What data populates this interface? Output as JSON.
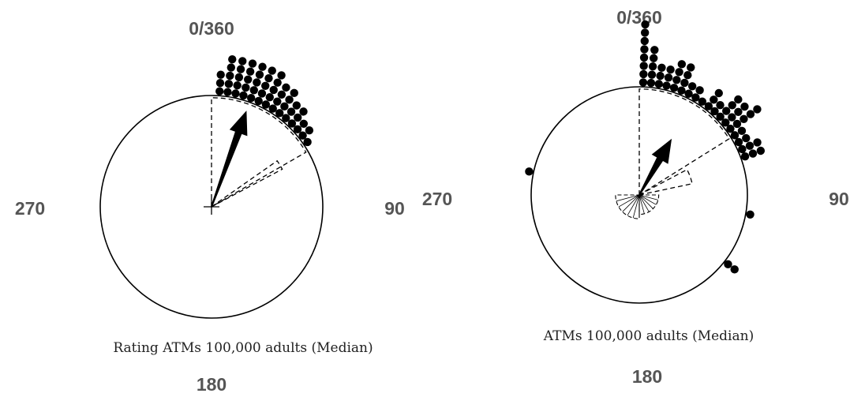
{
  "chart_data": [
    {
      "type": "circular_dot_plot",
      "caption": "Rating ATMs 100,000 adults (Median)",
      "direction_labels": {
        "north": "0/360",
        "east": "90",
        "south": "180",
        "west": "270"
      },
      "units": "degrees",
      "mean_direction": 20,
      "mean_vector_length": 0.92,
      "confidence_bounds": [
        {
          "start": 0,
          "end": 60,
          "radius_fraction": 0.98
        },
        {
          "start": 55,
          "end": 62,
          "radius_fraction": 0.72
        }
      ],
      "rose_petals": [],
      "data_bins": [
        {
          "angle": 4,
          "count": 3
        },
        {
          "angle": 8,
          "count": 5
        },
        {
          "angle": 12,
          "count": 5
        },
        {
          "angle": 16,
          "count": 5
        },
        {
          "angle": 20,
          "count": 5
        },
        {
          "angle": 24,
          "count": 5
        },
        {
          "angle": 28,
          "count": 5
        },
        {
          "angle": 32,
          "count": 4
        },
        {
          "angle": 36,
          "count": 4
        },
        {
          "angle": 40,
          "count": 3
        },
        {
          "angle": 44,
          "count": 3
        },
        {
          "angle": 48,
          "count": 2
        },
        {
          "angle": 52,
          "count": 2
        },
        {
          "angle": 56,
          "count": 1
        }
      ],
      "colors": {
        "dot": "#000000",
        "circle": "#000000",
        "label": "#555555"
      }
    },
    {
      "type": "circular_dot_plot",
      "caption": "ATMs 100,000 adults (Median)",
      "direction_labels": {
        "north": "0/360",
        "east": "90",
        "south": "180",
        "west": "270"
      },
      "units": "degrees",
      "mean_direction": 30,
      "mean_vector_length": 0.6,
      "confidence_bounds": [
        {
          "start": 0,
          "end": 58,
          "radius_fraction": 0.98
        },
        {
          "start": 62,
          "end": 78,
          "radius_fraction": 0.5
        }
      ],
      "rose_petals": [
        {
          "start": 90,
          "end": 180,
          "radius_fraction": 0.18
        },
        {
          "start": 180,
          "end": 270,
          "radius_fraction": 0.22
        }
      ],
      "data_bins": [
        {
          "angle": 2,
          "count": 8
        },
        {
          "angle": 6,
          "count": 5
        },
        {
          "angle": 10,
          "count": 3
        },
        {
          "angle": 14,
          "count": 3
        },
        {
          "angle": 18,
          "count": 4
        },
        {
          "angle": 22,
          "count": 4
        },
        {
          "angle": 26,
          "count": 2
        },
        {
          "angle": 30,
          "count": 2
        },
        {
          "angle": 34,
          "count": 1
        },
        {
          "angle": 38,
          "count": 3
        },
        {
          "angle": 42,
          "count": 2
        },
        {
          "angle": 46,
          "count": 4
        },
        {
          "angle": 50,
          "count": 4
        },
        {
          "angle": 54,
          "count": 5
        },
        {
          "angle": 58,
          "count": 2
        },
        {
          "angle": 62,
          "count": 2
        },
        {
          "angle": 66,
          "count": 3
        },
        {
          "angle": 70,
          "count": 3
        },
        {
          "angle": 100,
          "count": 1
        },
        {
          "angle": 128,
          "count": 2
        },
        {
          "angle": 282,
          "count": 1
        }
      ],
      "colors": {
        "dot": "#000000",
        "circle": "#000000",
        "label": "#555555"
      }
    }
  ]
}
